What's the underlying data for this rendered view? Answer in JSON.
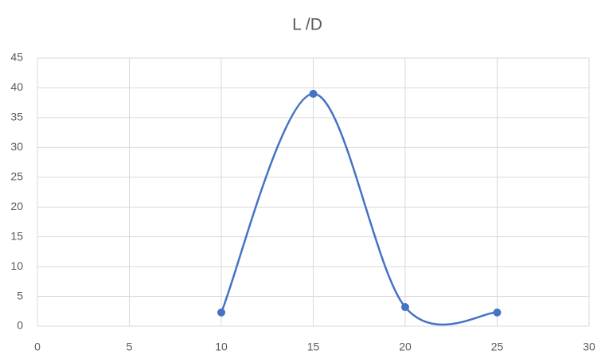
{
  "chart_data": {
    "type": "scatter",
    "title": "L /D",
    "x": [
      10,
      15,
      20,
      25
    ],
    "values": [
      2.3,
      39,
      3.2,
      2.3
    ],
    "color": "#4472c4",
    "smooth": true,
    "markers": true,
    "grid": true,
    "xlim": [
      0,
      30
    ],
    "xticks": [
      0,
      5,
      10,
      15,
      20,
      25,
      30
    ],
    "ylim": [
      0,
      45
    ],
    "yticks": [
      0,
      5,
      10,
      15,
      20,
      25,
      30,
      35,
      40,
      45
    ]
  }
}
